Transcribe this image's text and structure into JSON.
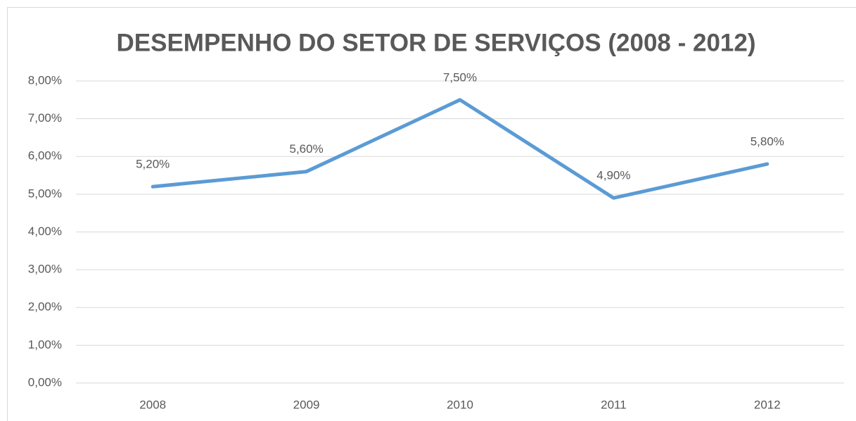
{
  "chart_data": {
    "type": "line",
    "title": "DESEMPENHO DO SETOR DE SERVIÇOS (2008 - 2012)",
    "categories": [
      "2008",
      "2009",
      "2010",
      "2011",
      "2012"
    ],
    "values": [
      5.2,
      5.6,
      7.5,
      4.9,
      5.8
    ],
    "value_labels": [
      "5,20%",
      "5,60%",
      "7,50%",
      "4,90%",
      "5,80%"
    ],
    "color": "#5b9bd5",
    "ylim": [
      0,
      8
    ],
    "yticks": [
      {
        "value": 0,
        "label": "0,00%"
      },
      {
        "value": 1,
        "label": "1,00%"
      },
      {
        "value": 2,
        "label": "2,00%"
      },
      {
        "value": 3,
        "label": "3,00%"
      },
      {
        "value": 4,
        "label": "4,00%"
      },
      {
        "value": 5,
        "label": "5,00%"
      },
      {
        "value": 6,
        "label": "6,00%"
      },
      {
        "value": 7,
        "label": "7,00%"
      },
      {
        "value": 8,
        "label": "8,00%"
      }
    ],
    "grid": true
  }
}
